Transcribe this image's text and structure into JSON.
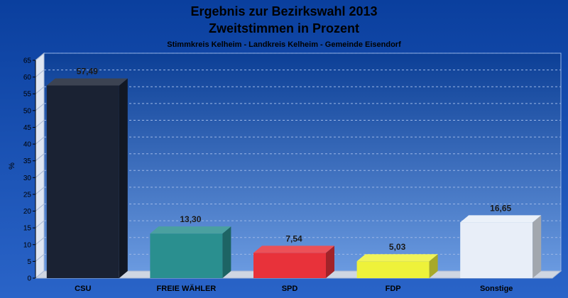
{
  "chart_data": {
    "type": "bar",
    "title": "Ergebnis zur Bezirkswahl 2013",
    "subtitle": "Zweitstimmen in Prozent",
    "caption": "Stimmkreis Kelheim - Landkreis Kelheim - Gemeinde Eisendorf",
    "ylabel": "%",
    "xlabel": "",
    "ylim": [
      0,
      65
    ],
    "yticks": [
      0,
      5,
      10,
      15,
      20,
      25,
      30,
      35,
      40,
      45,
      50,
      55,
      60,
      65
    ],
    "grid": true,
    "categories": [
      "CSU",
      "FREIE WÄHLER",
      "SPD",
      "FDP",
      "Sonstige"
    ],
    "values": [
      57.49,
      13.3,
      7.54,
      5.03,
      16.65
    ],
    "value_labels": [
      "57,49",
      "13,30",
      "7,54",
      "5,03",
      "16,65"
    ],
    "colors": [
      "#1a2233",
      "#2a8f8f",
      "#e8323a",
      "#eef23a",
      "#e8eef8"
    ]
  }
}
